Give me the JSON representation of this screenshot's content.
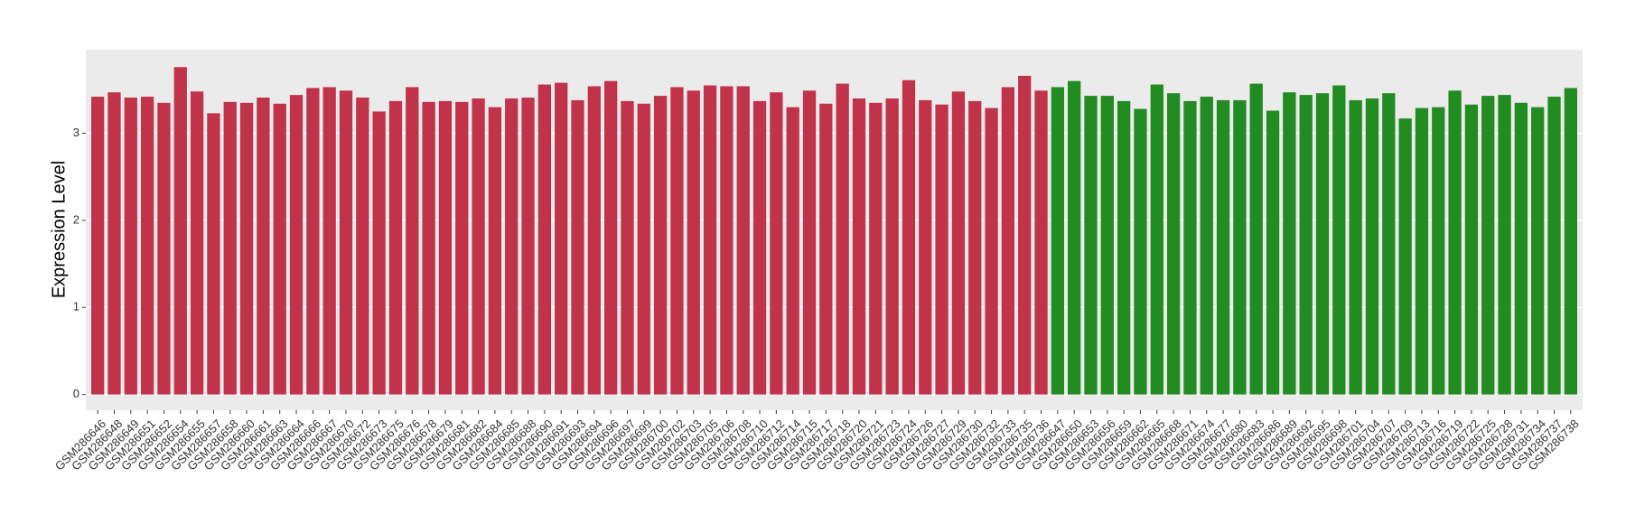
{
  "chart_data": {
    "type": "bar",
    "y_label": "Expression Level",
    "categories": [
      "GSM286646",
      "GSM286648",
      "GSM286649",
      "GSM286651",
      "GSM286652",
      "GSM286654",
      "GSM286655",
      "GSM286657",
      "GSM286658",
      "GSM286660",
      "GSM286661",
      "GSM286663",
      "GSM286664",
      "GSM286666",
      "GSM286667",
      "GSM286670",
      "GSM286672",
      "GSM286673",
      "GSM286675",
      "GSM286676",
      "GSM286678",
      "GSM286679",
      "GSM286681",
      "GSM286682",
      "GSM286684",
      "GSM286685",
      "GSM286688",
      "GSM286690",
      "GSM286691",
      "GSM286693",
      "GSM286694",
      "GSM286696",
      "GSM286697",
      "GSM286699",
      "GSM286700",
      "GSM286702",
      "GSM286703",
      "GSM286705",
      "GSM286706",
      "GSM286708",
      "GSM286710",
      "GSM286712",
      "GSM286714",
      "GSM286715",
      "GSM286717",
      "GSM286718",
      "GSM286720",
      "GSM286721",
      "GSM286723",
      "GSM286724",
      "GSM286726",
      "GSM286727",
      "GSM286729",
      "GSM286730",
      "GSM286732",
      "GSM286733",
      "GSM286735",
      "GSM286736",
      "GSM286647",
      "GSM286650",
      "GSM286653",
      "GSM286656",
      "GSM286659",
      "GSM286662",
      "GSM286665",
      "GSM286668",
      "GSM286671",
      "GSM286674",
      "GSM286677",
      "GSM286680",
      "GSM286683",
      "GSM286686",
      "GSM286689",
      "GSM286692",
      "GSM286695",
      "GSM286698",
      "GSM286701",
      "GSM286704",
      "GSM286707",
      "GSM286709",
      "GSM286713",
      "GSM286716",
      "GSM286719",
      "GSM286722",
      "GSM286725",
      "GSM286728",
      "GSM286731",
      "GSM286734",
      "GSM286737",
      "GSM286738"
    ],
    "values": [
      3.42,
      3.47,
      3.41,
      3.42,
      3.35,
      3.76,
      3.48,
      3.23,
      3.36,
      3.35,
      3.41,
      3.34,
      3.44,
      3.52,
      3.53,
      3.49,
      3.41,
      3.25,
      3.37,
      3.53,
      3.36,
      3.37,
      3.36,
      3.4,
      3.3,
      3.4,
      3.41,
      3.56,
      3.58,
      3.38,
      3.54,
      3.6,
      3.37,
      3.34,
      3.43,
      3.53,
      3.49,
      3.55,
      3.54,
      3.54,
      3.37,
      3.47,
      3.3,
      3.49,
      3.34,
      3.57,
      3.4,
      3.35,
      3.4,
      3.61,
      3.38,
      3.33,
      3.48,
      3.37,
      3.29,
      3.53,
      3.66,
      3.49,
      3.53,
      3.6,
      3.43,
      3.43,
      3.37,
      3.28,
      3.56,
      3.46,
      3.37,
      3.42,
      3.38,
      3.38,
      3.57,
      3.26,
      3.47,
      3.44,
      3.46,
      3.55,
      3.38,
      3.4,
      3.46,
      3.17,
      3.29,
      3.3,
      3.49,
      3.33,
      3.43,
      3.44,
      3.35,
      3.3,
      3.42,
      3.52
    ],
    "colors": [
      "#c0334a",
      "#c0334a",
      "#c0334a",
      "#c0334a",
      "#c0334a",
      "#c0334a",
      "#c0334a",
      "#c0334a",
      "#c0334a",
      "#c0334a",
      "#c0334a",
      "#c0334a",
      "#c0334a",
      "#c0334a",
      "#c0334a",
      "#c0334a",
      "#c0334a",
      "#c0334a",
      "#c0334a",
      "#c0334a",
      "#c0334a",
      "#c0334a",
      "#c0334a",
      "#c0334a",
      "#c0334a",
      "#c0334a",
      "#c0334a",
      "#c0334a",
      "#c0334a",
      "#c0334a",
      "#c0334a",
      "#c0334a",
      "#c0334a",
      "#c0334a",
      "#c0334a",
      "#c0334a",
      "#c0334a",
      "#c0334a",
      "#c0334a",
      "#c0334a",
      "#c0334a",
      "#c0334a",
      "#c0334a",
      "#c0334a",
      "#c0334a",
      "#c0334a",
      "#c0334a",
      "#c0334a",
      "#c0334a",
      "#c0334a",
      "#c0334a",
      "#c0334a",
      "#c0334a",
      "#c0334a",
      "#c0334a",
      "#c0334a",
      "#c0334a",
      "#c0334a",
      "#228b22",
      "#228b22",
      "#228b22",
      "#228b22",
      "#228b22",
      "#228b22",
      "#228b22",
      "#228b22",
      "#228b22",
      "#228b22",
      "#228b22",
      "#228b22",
      "#228b22",
      "#228b22",
      "#228b22",
      "#228b22",
      "#228b22",
      "#228b22",
      "#228b22",
      "#228b22",
      "#228b22",
      "#228b22",
      "#228b22",
      "#228b22",
      "#228b22",
      "#228b22",
      "#228b22",
      "#228b22",
      "#228b22",
      "#228b22",
      "#228b22",
      "#228b22"
    ],
    "ylim": [
      -0.18,
      3.96
    ],
    "yticks": [
      0,
      1,
      2,
      3
    ],
    "grid": true
  }
}
